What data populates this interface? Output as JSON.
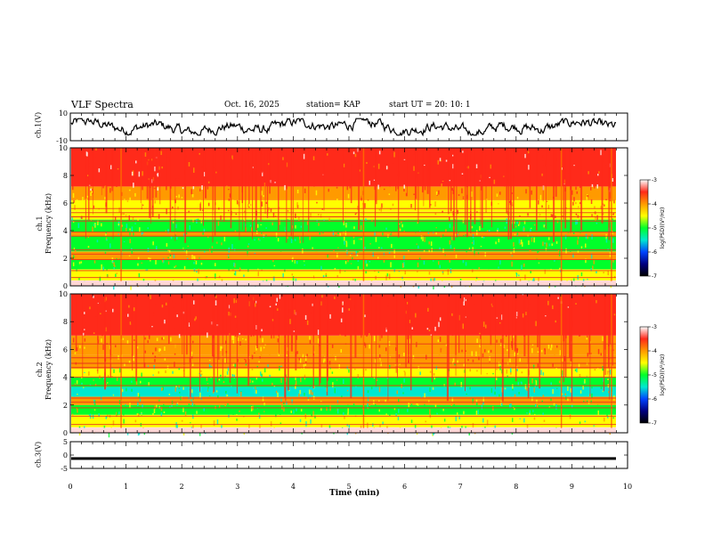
{
  "header": {
    "title": "VLF Spectra",
    "date": "Oct. 16, 2025",
    "station": "station= KAP",
    "start": "start  UT =   20: 10: 1"
  },
  "chart_data": [
    {
      "type": "line",
      "name": "ch1-voltage",
      "ylabel": "ch.1(V)",
      "ylim": [
        -10,
        10
      ],
      "yticks": [
        "10",
        "-10"
      ],
      "xlim": [
        0,
        10
      ],
      "description_values_range": [
        -6,
        6
      ]
    },
    {
      "type": "heatmap",
      "name": "ch1-spectrogram",
      "ylabel_line1": "ch.1",
      "ylabel_line2": "Frequency  (kHz)",
      "ylim": [
        0,
        10
      ],
      "yticks": [
        "0",
        "2",
        "4",
        "6",
        "8",
        "10"
      ],
      "xlim": [
        0,
        9.82
      ],
      "colorbar": {
        "label": "log(PSD)(V²/Hz)",
        "range": [
          -7,
          -3
        ],
        "ticks": [
          "-3",
          "-4",
          "-5",
          "-6",
          "-7"
        ]
      }
    },
    {
      "type": "heatmap",
      "name": "ch2-spectrogram",
      "ylabel_line1": "ch.2",
      "ylabel_line2": "Frequency  (kHz)",
      "ylim": [
        0,
        10
      ],
      "yticks": [
        "0",
        "2",
        "4",
        "6",
        "8",
        "10"
      ],
      "xlim": [
        0,
        9.82
      ],
      "colorbar": {
        "label": "log(PSD)(V²/Hz)",
        "range": [
          -7,
          -3
        ],
        "ticks": [
          "-3",
          "-4",
          "-5",
          "-6",
          "-7"
        ]
      }
    },
    {
      "type": "line",
      "name": "ch3-voltage",
      "ylabel": "ch.3(V)",
      "ylim": [
        -5,
        5
      ],
      "yticks": [
        "5",
        "0",
        "-5"
      ],
      "xlim": [
        0,
        10
      ],
      "level": [
        -0.8,
        -1.8
      ]
    }
  ],
  "xaxis": {
    "label": "Time  (min)",
    "ticks": [
      "0",
      "1",
      "2",
      "3",
      "4",
      "5",
      "6",
      "7",
      "8",
      "9",
      "10"
    ],
    "range": [
      0,
      10
    ]
  },
  "colors": {
    "trace": "#000000",
    "red": "#ff2a1a",
    "orange": "#ff9a00",
    "yellow": "#ffff00",
    "green": "#00ff2a",
    "cyan": "#00e8d0",
    "blue": "#0044ff",
    "navy": "#000080"
  }
}
